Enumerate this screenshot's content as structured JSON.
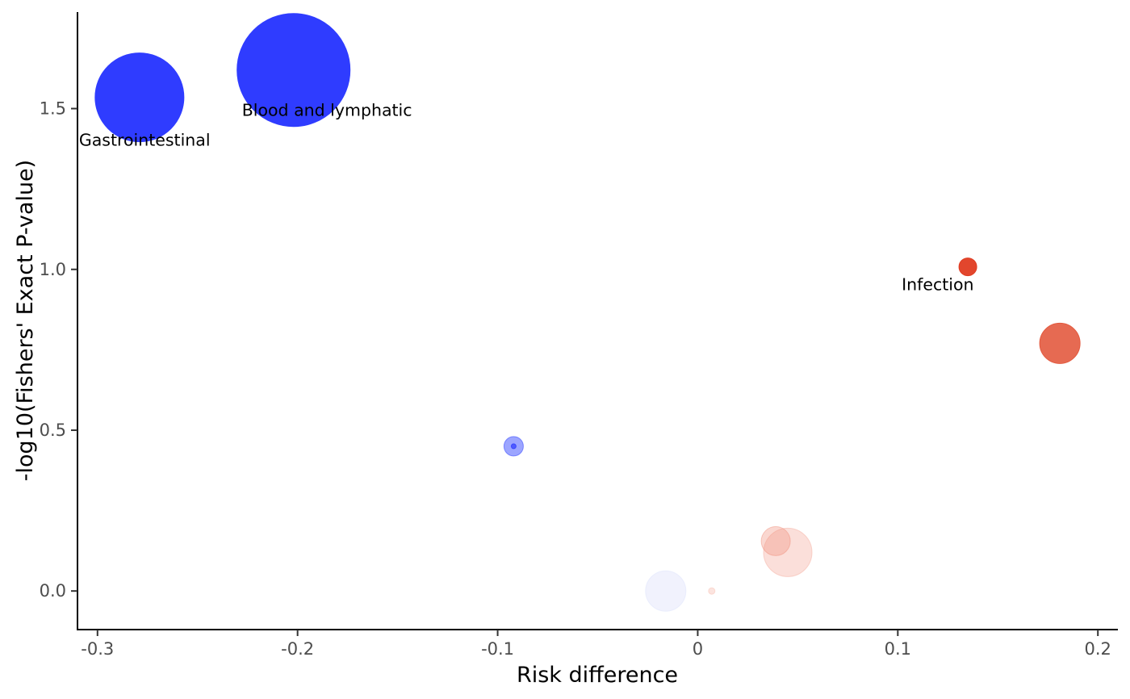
{
  "chart_data": {
    "type": "scatter",
    "xlabel": "Risk difference",
    "ylabel": "-log10(Fishers' Exact P-value)",
    "xlim": [
      -0.31,
      0.21
    ],
    "ylim": [
      -0.12,
      1.8
    ],
    "xticks": [
      -0.3,
      -0.2,
      -0.1,
      0,
      0.1,
      0.2
    ],
    "xtick_labels": [
      "-0.3",
      "-0.2",
      "-0.1",
      "0",
      "0.1",
      "0.2"
    ],
    "yticks": [
      0.0,
      0.5,
      1.0,
      1.5
    ],
    "ytick_labels": [
      "0.0",
      "0.5",
      "1.0",
      "1.5"
    ],
    "grid": false,
    "legend": "none",
    "points": [
      {
        "x": -0.202,
        "y": 1.62,
        "size": 70,
        "color": "#2f3cff",
        "opacity": 1.0,
        "label": "Blood and lymphatic"
      },
      {
        "x": -0.279,
        "y": 1.535,
        "size": 55,
        "color": "#2f3cff",
        "opacity": 1.0,
        "label": "Gastrointestinal"
      },
      {
        "x": 0.135,
        "y": 1.008,
        "size": 11,
        "color": "#e03c22",
        "opacity": 0.95,
        "label": "Infection"
      },
      {
        "x": 0.181,
        "y": 0.77,
        "size": 25,
        "color": "#e35a3f",
        "opacity": 0.9,
        "label": ""
      },
      {
        "x": -0.092,
        "y": 0.45,
        "size": 12,
        "color": "#4a5bff",
        "opacity": 0.55,
        "label": ""
      },
      {
        "x": -0.092,
        "y": 0.45,
        "size": 3,
        "color": "#2f3cff",
        "opacity": 0.7,
        "label": ""
      },
      {
        "x": 0.039,
        "y": 0.155,
        "size": 18,
        "color": "#f08c78",
        "opacity": 0.35,
        "label": ""
      },
      {
        "x": 0.045,
        "y": 0.12,
        "size": 30,
        "color": "#f5b0a2",
        "opacity": 0.4,
        "label": ""
      },
      {
        "x": -0.016,
        "y": 0.0,
        "size": 25,
        "color": "#dfe3fb",
        "opacity": 0.45,
        "label": ""
      },
      {
        "x": 0.007,
        "y": 0.0,
        "size": 4,
        "color": "#f8c4b8",
        "opacity": 0.45,
        "label": ""
      }
    ]
  }
}
